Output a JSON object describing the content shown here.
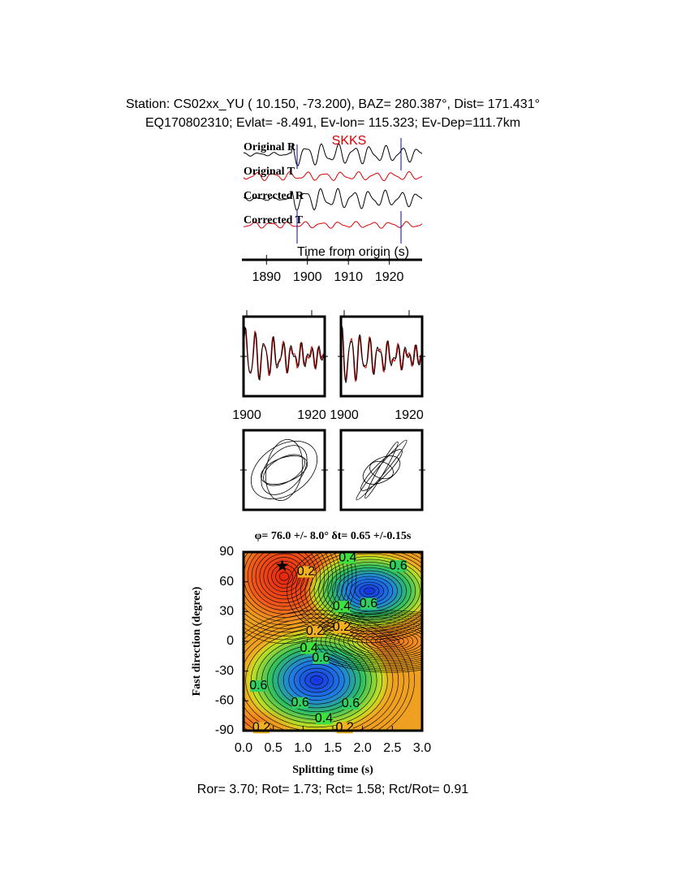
{
  "header": {
    "line1": "Station: CS02xx_YU (  10.150,  -73.200), BAZ=  280.387°, Dist=  171.431°",
    "line2": "EQ170802310; Evlat=  -8.491, Ev-lon= 115.323; Ev-Dep=111.7km"
  },
  "waveforms": {
    "phase": "SKKS",
    "traces": [
      "Original R",
      "Original T",
      "Corrected R",
      "Corrected T"
    ],
    "xlabel": "Time from origin (s)",
    "xlim": [
      1884,
      1928
    ],
    "xticks": [
      1890,
      1900,
      1910,
      1920
    ]
  },
  "windows": {
    "panels": [
      {
        "xlim": [
          1899,
          1924
        ],
        "xticks": [
          1900,
          1920
        ]
      },
      {
        "xlim": [
          1899,
          1924
        ],
        "xticks": [
          1900,
          1920
        ]
      }
    ]
  },
  "contour": {
    "title": "φ= 76.0 +/- 8.0° δt= 0.65 +/-0.15s",
    "xlabel": "Splitting time (s)",
    "ylabel": "Fast direction (degree)",
    "xlim": [
      0,
      3
    ],
    "ylim": [
      -90,
      90
    ],
    "xticks": [
      {
        "value": 0,
        "label": "0.0"
      },
      0.5,
      {
        "value": 1,
        "label": "1.0"
      },
      1.5,
      {
        "value": 2,
        "label": "2.0"
      },
      2.5,
      {
        "value": 3,
        "label": "3.0"
      }
    ],
    "yticks": [
      -90,
      -60,
      -30,
      0,
      30,
      60,
      90
    ],
    "best": {
      "dt": 0.65,
      "fast": 76
    },
    "levels": [
      {
        "level": 0.4,
        "dt": 1.75,
        "fast": 84
      },
      {
        "level": 0.6,
        "dt": 2.6,
        "fast": 76
      },
      {
        "level": 0.2,
        "dt": 1.05,
        "fast": 70
      },
      {
        "level": 0.4,
        "dt": 1.65,
        "fast": 35
      },
      {
        "level": 0.6,
        "dt": 2.1,
        "fast": 38
      },
      {
        "level": 0.2,
        "dt": 1.2,
        "fast": 10
      },
      {
        "level": 0.2,
        "dt": 1.65,
        "fast": 14
      },
      {
        "level": 0.4,
        "dt": 1.1,
        "fast": -7
      },
      {
        "level": 0.6,
        "dt": 1.3,
        "fast": -17
      },
      {
        "level": 0.6,
        "dt": 0.25,
        "fast": -45
      },
      {
        "level": 0.6,
        "dt": 0.95,
        "fast": -62
      },
      {
        "level": 0.6,
        "dt": 1.8,
        "fast": -63
      },
      {
        "level": 0.4,
        "dt": 1.35,
        "fast": -78
      },
      {
        "level": 0.2,
        "dt": 0.3,
        "fast": -87
      },
      {
        "level": 0.2,
        "dt": 1.7,
        "fast": -87
      }
    ]
  },
  "footer": "Ror= 3.70; Rot= 1.73; Rct= 1.58; Rct/Rot= 0.91"
}
